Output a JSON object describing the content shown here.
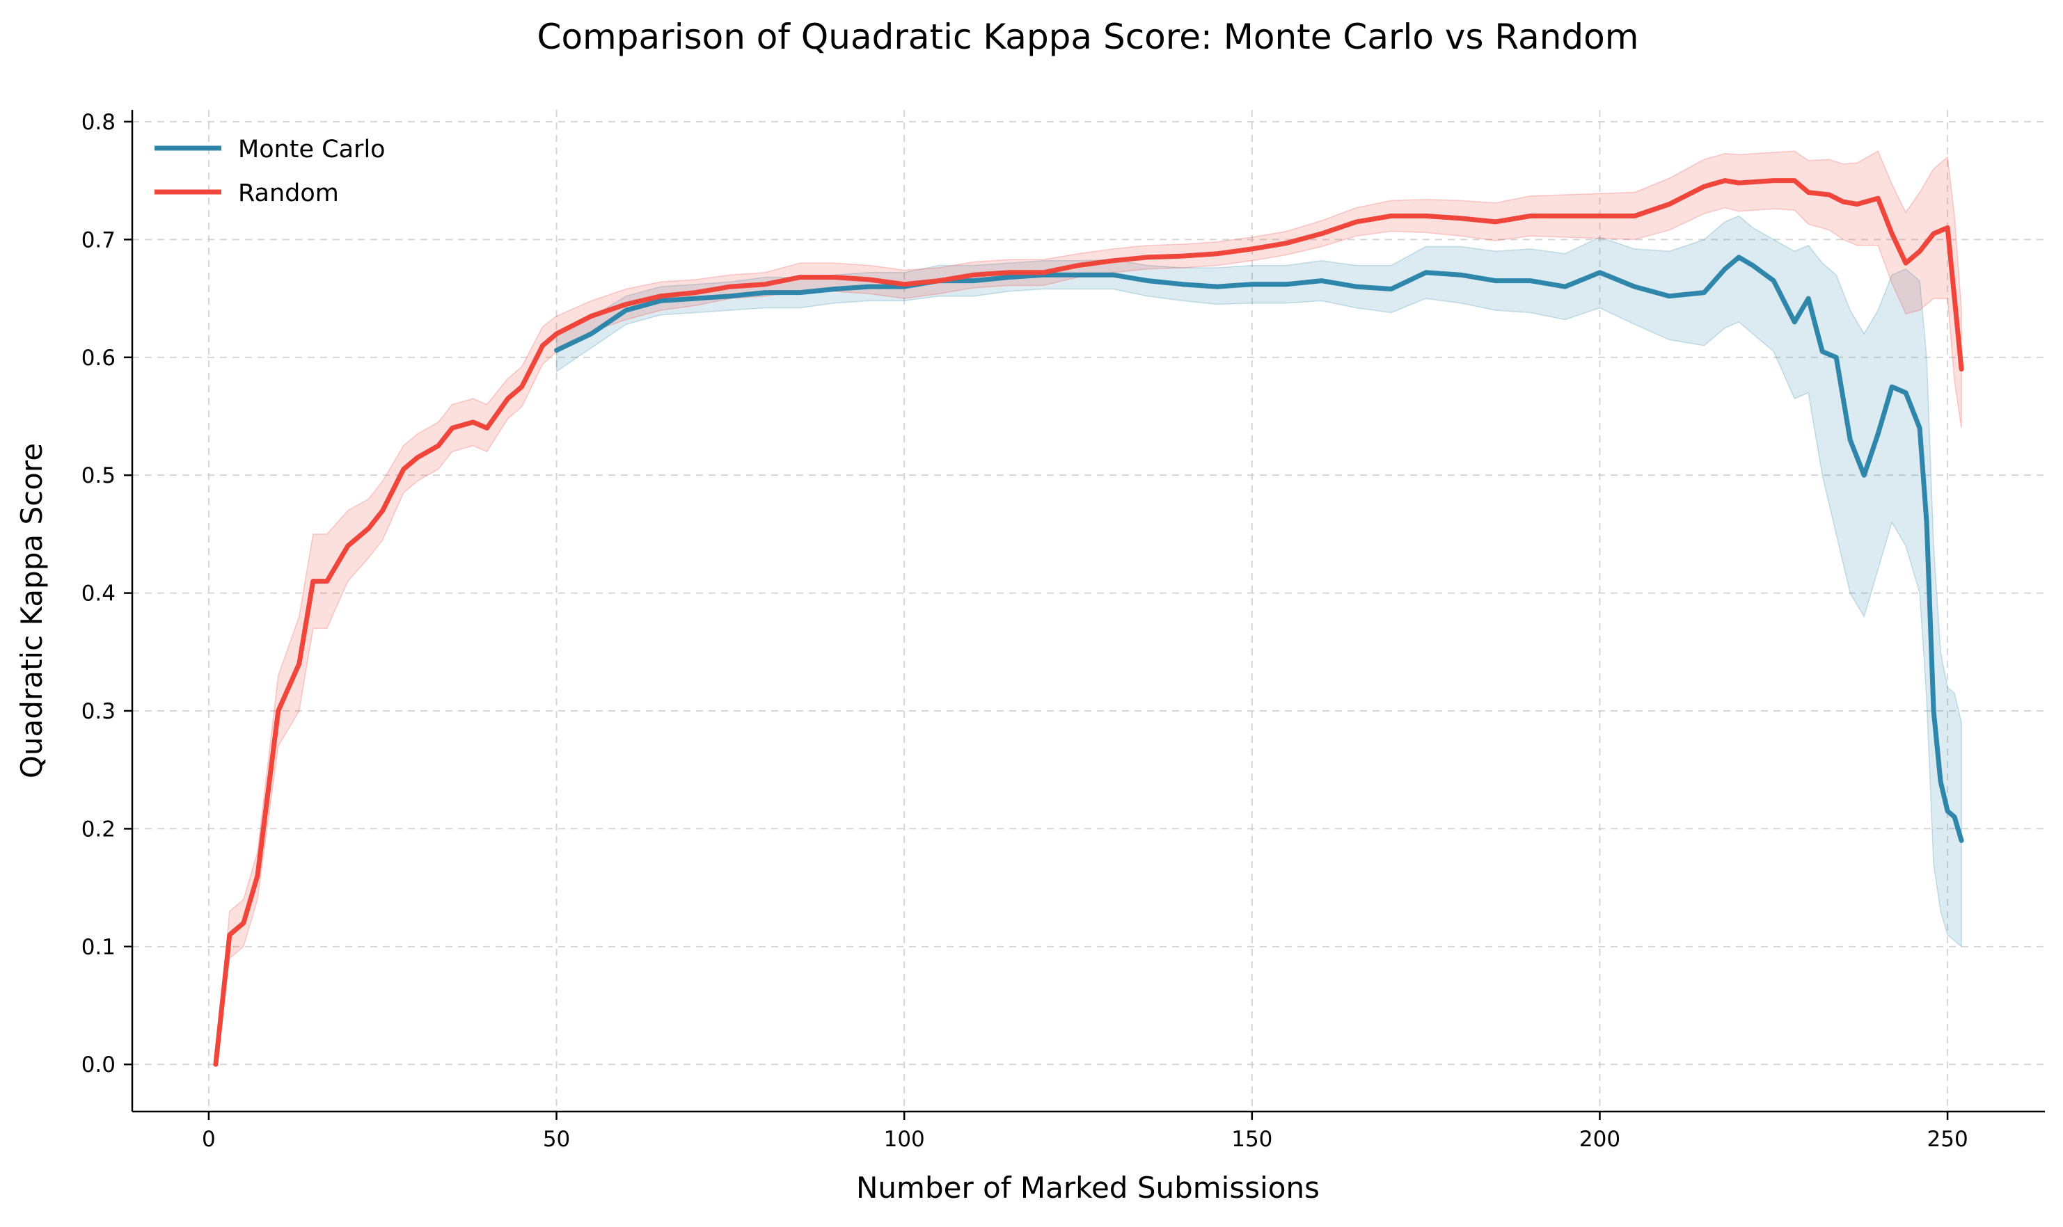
{
  "chart_data": {
    "type": "line",
    "title": "Comparison of Quadratic Kappa Score: Monte Carlo vs Random",
    "xlabel": "Number of Marked Submissions",
    "ylabel": "Quadratic Kappa Score",
    "xlim": [
      -11,
      264
    ],
    "ylim": [
      -0.04,
      0.81
    ],
    "xticks": [
      0,
      50,
      100,
      150,
      200,
      250
    ],
    "yticks": [
      0.0,
      0.1,
      0.2,
      0.3,
      0.4,
      0.5,
      0.6,
      0.7,
      0.8
    ],
    "xtick_labels": [
      "0",
      "50",
      "100",
      "150",
      "200",
      "250"
    ],
    "ytick_labels": [
      "0.0",
      "0.1",
      "0.2",
      "0.3",
      "0.4",
      "0.5",
      "0.6",
      "0.7",
      "0.8"
    ],
    "grid": true,
    "legend_position": "top-left",
    "series": [
      {
        "name": "Monte Carlo",
        "color": "#2e86ab",
        "band_color": "#2e86ab",
        "x": [
          50,
          55,
          60,
          65,
          70,
          75,
          80,
          85,
          90,
          95,
          100,
          105,
          110,
          115,
          120,
          125,
          130,
          135,
          140,
          145,
          150,
          155,
          160,
          165,
          170,
          175,
          180,
          185,
          190,
          195,
          200,
          205,
          210,
          215,
          218,
          220,
          222,
          225,
          228,
          230,
          232,
          234,
          236,
          238,
          240,
          242,
          244,
          246,
          247,
          248,
          249,
          250,
          251,
          252
        ],
        "y": [
          0.606,
          0.62,
          0.64,
          0.648,
          0.65,
          0.652,
          0.655,
          0.655,
          0.658,
          0.66,
          0.66,
          0.665,
          0.665,
          0.668,
          0.67,
          0.67,
          0.67,
          0.665,
          0.662,
          0.66,
          0.662,
          0.662,
          0.665,
          0.66,
          0.658,
          0.672,
          0.67,
          0.665,
          0.665,
          0.66,
          0.672,
          0.66,
          0.652,
          0.655,
          0.675,
          0.685,
          0.678,
          0.665,
          0.63,
          0.65,
          0.605,
          0.6,
          0.53,
          0.5,
          0.535,
          0.575,
          0.57,
          0.54,
          0.46,
          0.3,
          0.24,
          0.215,
          0.21,
          0.19
        ],
        "lower": [
          0.588,
          0.608,
          0.628,
          0.636,
          0.638,
          0.64,
          0.642,
          0.642,
          0.646,
          0.648,
          0.648,
          0.652,
          0.652,
          0.656,
          0.658,
          0.658,
          0.658,
          0.652,
          0.648,
          0.645,
          0.646,
          0.646,
          0.648,
          0.642,
          0.638,
          0.65,
          0.646,
          0.64,
          0.638,
          0.632,
          0.642,
          0.628,
          0.615,
          0.61,
          0.625,
          0.63,
          0.62,
          0.605,
          0.565,
          0.57,
          0.5,
          0.45,
          0.4,
          0.38,
          0.42,
          0.46,
          0.44,
          0.4,
          0.31,
          0.17,
          0.13,
          0.11,
          0.105,
          0.1
        ],
        "upper": [
          0.622,
          0.634,
          0.652,
          0.66,
          0.662,
          0.664,
          0.668,
          0.668,
          0.67,
          0.672,
          0.672,
          0.678,
          0.678,
          0.68,
          0.682,
          0.682,
          0.683,
          0.678,
          0.676,
          0.676,
          0.678,
          0.678,
          0.682,
          0.678,
          0.678,
          0.694,
          0.694,
          0.69,
          0.692,
          0.688,
          0.702,
          0.692,
          0.69,
          0.7,
          0.715,
          0.72,
          0.71,
          0.7,
          0.69,
          0.695,
          0.68,
          0.67,
          0.64,
          0.62,
          0.64,
          0.67,
          0.675,
          0.665,
          0.6,
          0.44,
          0.35,
          0.32,
          0.315,
          0.29
        ]
      },
      {
        "name": "Random",
        "color": "#f0453a",
        "band_color": "#f0453a",
        "x": [
          1,
          3,
          5,
          7,
          10,
          13,
          15,
          17,
          20,
          23,
          25,
          28,
          30,
          33,
          35,
          38,
          40,
          43,
          45,
          48,
          50,
          55,
          60,
          65,
          70,
          75,
          80,
          85,
          90,
          95,
          100,
          105,
          110,
          115,
          120,
          125,
          130,
          135,
          140,
          145,
          150,
          155,
          160,
          165,
          170,
          175,
          180,
          185,
          190,
          195,
          200,
          205,
          210,
          215,
          218,
          220,
          225,
          228,
          230,
          233,
          235,
          237,
          240,
          242,
          244,
          246,
          248,
          250,
          251,
          252
        ],
        "y": [
          0.0,
          0.11,
          0.12,
          0.16,
          0.3,
          0.34,
          0.41,
          0.41,
          0.44,
          0.455,
          0.47,
          0.505,
          0.515,
          0.525,
          0.54,
          0.545,
          0.54,
          0.565,
          0.575,
          0.61,
          0.62,
          0.635,
          0.645,
          0.652,
          0.655,
          0.66,
          0.662,
          0.668,
          0.668,
          0.666,
          0.662,
          0.665,
          0.67,
          0.672,
          0.672,
          0.678,
          0.682,
          0.685,
          0.686,
          0.688,
          0.692,
          0.697,
          0.705,
          0.715,
          0.72,
          0.72,
          0.718,
          0.715,
          0.72,
          0.72,
          0.72,
          0.72,
          0.73,
          0.745,
          0.75,
          0.748,
          0.75,
          0.75,
          0.74,
          0.738,
          0.732,
          0.73,
          0.735,
          0.705,
          0.68,
          0.69,
          0.705,
          0.71,
          0.65,
          0.59
        ],
        "lower": [
          0.0,
          0.09,
          0.1,
          0.14,
          0.27,
          0.3,
          0.37,
          0.37,
          0.41,
          0.43,
          0.445,
          0.485,
          0.495,
          0.505,
          0.52,
          0.525,
          0.52,
          0.548,
          0.558,
          0.594,
          0.605,
          0.622,
          0.632,
          0.64,
          0.644,
          0.65,
          0.652,
          0.656,
          0.656,
          0.654,
          0.65,
          0.654,
          0.659,
          0.661,
          0.661,
          0.668,
          0.672,
          0.675,
          0.676,
          0.678,
          0.682,
          0.687,
          0.694,
          0.703,
          0.707,
          0.706,
          0.703,
          0.699,
          0.703,
          0.702,
          0.701,
          0.7,
          0.708,
          0.722,
          0.727,
          0.724,
          0.726,
          0.725,
          0.713,
          0.708,
          0.7,
          0.695,
          0.695,
          0.663,
          0.637,
          0.64,
          0.65,
          0.65,
          0.58,
          0.54
        ],
        "upper": [
          0.0,
          0.13,
          0.14,
          0.18,
          0.33,
          0.38,
          0.45,
          0.45,
          0.47,
          0.48,
          0.495,
          0.525,
          0.535,
          0.545,
          0.56,
          0.565,
          0.56,
          0.582,
          0.592,
          0.626,
          0.635,
          0.648,
          0.658,
          0.664,
          0.666,
          0.67,
          0.672,
          0.68,
          0.68,
          0.678,
          0.674,
          0.676,
          0.681,
          0.683,
          0.683,
          0.688,
          0.692,
          0.695,
          0.696,
          0.698,
          0.702,
          0.707,
          0.716,
          0.727,
          0.733,
          0.734,
          0.733,
          0.731,
          0.737,
          0.738,
          0.739,
          0.74,
          0.752,
          0.768,
          0.773,
          0.772,
          0.774,
          0.775,
          0.767,
          0.768,
          0.764,
          0.765,
          0.775,
          0.747,
          0.723,
          0.74,
          0.76,
          0.77,
          0.72,
          0.64
        ]
      }
    ]
  }
}
